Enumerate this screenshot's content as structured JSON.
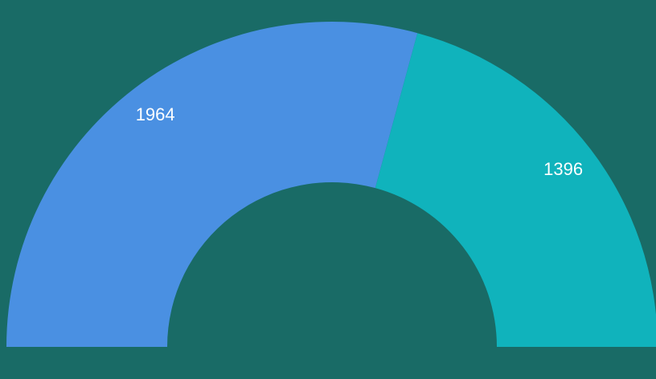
{
  "chart_data": {
    "type": "semi-donut",
    "categories": [
      null,
      null
    ],
    "values": [
      1964,
      1396
    ],
    "colors": [
      "#4a90e2",
      "#10b3bc"
    ],
    "background": "#196b66"
  }
}
